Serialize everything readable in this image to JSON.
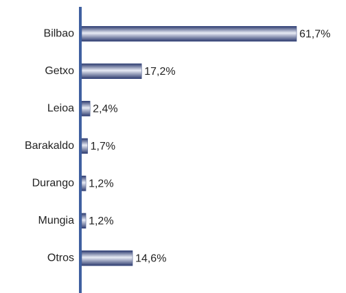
{
  "chart_data": {
    "type": "bar",
    "orientation": "horizontal",
    "categories": [
      "Bilbao",
      "Getxo",
      "Leioa",
      "Barakaldo",
      "Durango",
      "Mungia",
      "Otros"
    ],
    "values": [
      61.7,
      17.2,
      2.4,
      1.7,
      1.2,
      1.2,
      14.6
    ],
    "value_labels": [
      "61,7%",
      "17,2%",
      "2,4%",
      "1,7%",
      "1,2%",
      "1,2%",
      "14,6%"
    ],
    "color": "#3d4f86"
  }
}
